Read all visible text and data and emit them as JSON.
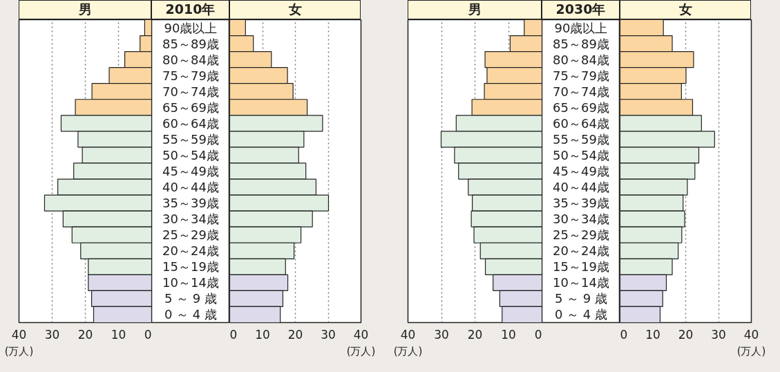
{
  "chart_data": [
    {
      "type": "bar",
      "orientation": "horizontal",
      "title": "男",
      "subtitle": "2010年",
      "xlabel": "(万人)",
      "categories": [
        "90歳以上",
        "85～89歳",
        "80～84歳",
        "75～79歳",
        "70～74歳",
        "65～69歳",
        "60～64歳",
        "55～59歳",
        "50～54歳",
        "45～49歳",
        "40～44歳",
        "35～39歳",
        "30～34歳",
        "25～29歳",
        "20～24歳",
        "15～19歳",
        "10～14歳",
        "5 ～ 9 歳",
        "0 ～ 4 歳"
      ],
      "values": [
        2.1,
        3.5,
        8.1,
        12.8,
        18.0,
        23.0,
        27.3,
        22.2,
        20.9,
        23.5,
        28.3,
        32.3,
        26.7,
        24.0,
        21.4,
        19.1,
        19.1,
        18.1,
        17.5
      ],
      "colors": [
        "#fcd6a0",
        "#fcd6a0",
        "#fcd6a0",
        "#fcd6a0",
        "#fcd6a0",
        "#fcd6a0",
        "#e1efe2",
        "#e1efe2",
        "#e1efe2",
        "#e1efe2",
        "#e1efe2",
        "#e1efe2",
        "#e1efe2",
        "#e1efe2",
        "#e1efe2",
        "#e1efe2",
        "#dddaec",
        "#dddaec",
        "#dddaec"
      ],
      "xlim": [
        40,
        0
      ],
      "xticks": [
        40,
        30,
        20,
        10,
        0
      ],
      "grid": "x"
    },
    {
      "type": "bar",
      "orientation": "horizontal",
      "title": "女",
      "xlabel": "(万人)",
      "values": [
        4.8,
        7.2,
        12.7,
        17.6,
        19.3,
        23.6,
        28.3,
        22.6,
        21.0,
        23.2,
        26.3,
        30.1,
        25.2,
        21.7,
        19.6,
        17.0,
        17.7,
        16.2,
        15.4
      ],
      "colors": [
        "#fcd6a0",
        "#fcd6a0",
        "#fcd6a0",
        "#fcd6a0",
        "#fcd6a0",
        "#fcd6a0",
        "#e1efe2",
        "#e1efe2",
        "#e1efe2",
        "#e1efe2",
        "#e1efe2",
        "#e1efe2",
        "#e1efe2",
        "#e1efe2",
        "#e1efe2",
        "#e1efe2",
        "#dddaec",
        "#dddaec",
        "#dddaec"
      ],
      "xlim": [
        0,
        40
      ],
      "xticks": [
        0,
        10,
        20,
        30,
        40
      ],
      "grid": "x",
      "tick_labels": "x"
    },
    {
      "type": "bar",
      "orientation": "horizontal",
      "title": "男",
      "subtitle": "2030年",
      "xlabel": "(万人)",
      "categories": [
        "90歳以上",
        "85～89歳",
        "80～84歳",
        "75～79歳",
        "70～74歳",
        "65～69歳",
        "60～64歳",
        "55～59歳",
        "50～54歳",
        "45～49歳",
        "40～44歳",
        "35～39歳",
        "30～34歳",
        "25～29歳",
        "20～24歳",
        "15～19歳",
        "10～14歳",
        "5 ～ 9 歳",
        "0 ～ 4 歳"
      ],
      "values": [
        5.3,
        9.5,
        17.0,
        16.4,
        17.2,
        20.9,
        25.6,
        30.1,
        26.1,
        24.9,
        22.0,
        20.8,
        21.1,
        20.3,
        18.4,
        16.9,
        14.6,
        12.6,
        11.9
      ],
      "colors": [
        "#fcd6a0",
        "#fcd6a0",
        "#fcd6a0",
        "#fcd6a0",
        "#fcd6a0",
        "#fcd6a0",
        "#e1efe2",
        "#e1efe2",
        "#e1efe2",
        "#e1efe2",
        "#e1efe2",
        "#e1efe2",
        "#e1efe2",
        "#e1efe2",
        "#e1efe2",
        "#e1efe2",
        "#dddaec",
        "#dddaec",
        "#dddaec"
      ],
      "xlim": [
        40,
        0
      ],
      "xticks": [
        40,
        30,
        20,
        10,
        0
      ],
      "grid": "x"
    },
    {
      "type": "bar",
      "orientation": "horizontal",
      "title": "女",
      "xlabel": "(万人)",
      "values": [
        13.2,
        15.9,
        22.4,
        20.1,
        18.7,
        22.1,
        24.8,
        28.8,
        24.0,
        22.8,
        20.5,
        19.2,
        19.7,
        18.8,
        17.7,
        15.9,
        14.1,
        13.0,
        12.2
      ],
      "colors": [
        "#fcd6a0",
        "#fcd6a0",
        "#fcd6a0",
        "#fcd6a0",
        "#fcd6a0",
        "#fcd6a0",
        "#e1efe2",
        "#e1efe2",
        "#e1efe2",
        "#e1efe2",
        "#e1efe2",
        "#e1efe2",
        "#e1efe2",
        "#e1efe2",
        "#e1efe2",
        "#e1efe2",
        "#dddaec",
        "#dddaec",
        "#dddaec"
      ],
      "xlim": [
        0,
        40
      ],
      "xticks": [
        0,
        10,
        20,
        30,
        40
      ],
      "grid": "x",
      "tick_labels": "x"
    }
  ]
}
